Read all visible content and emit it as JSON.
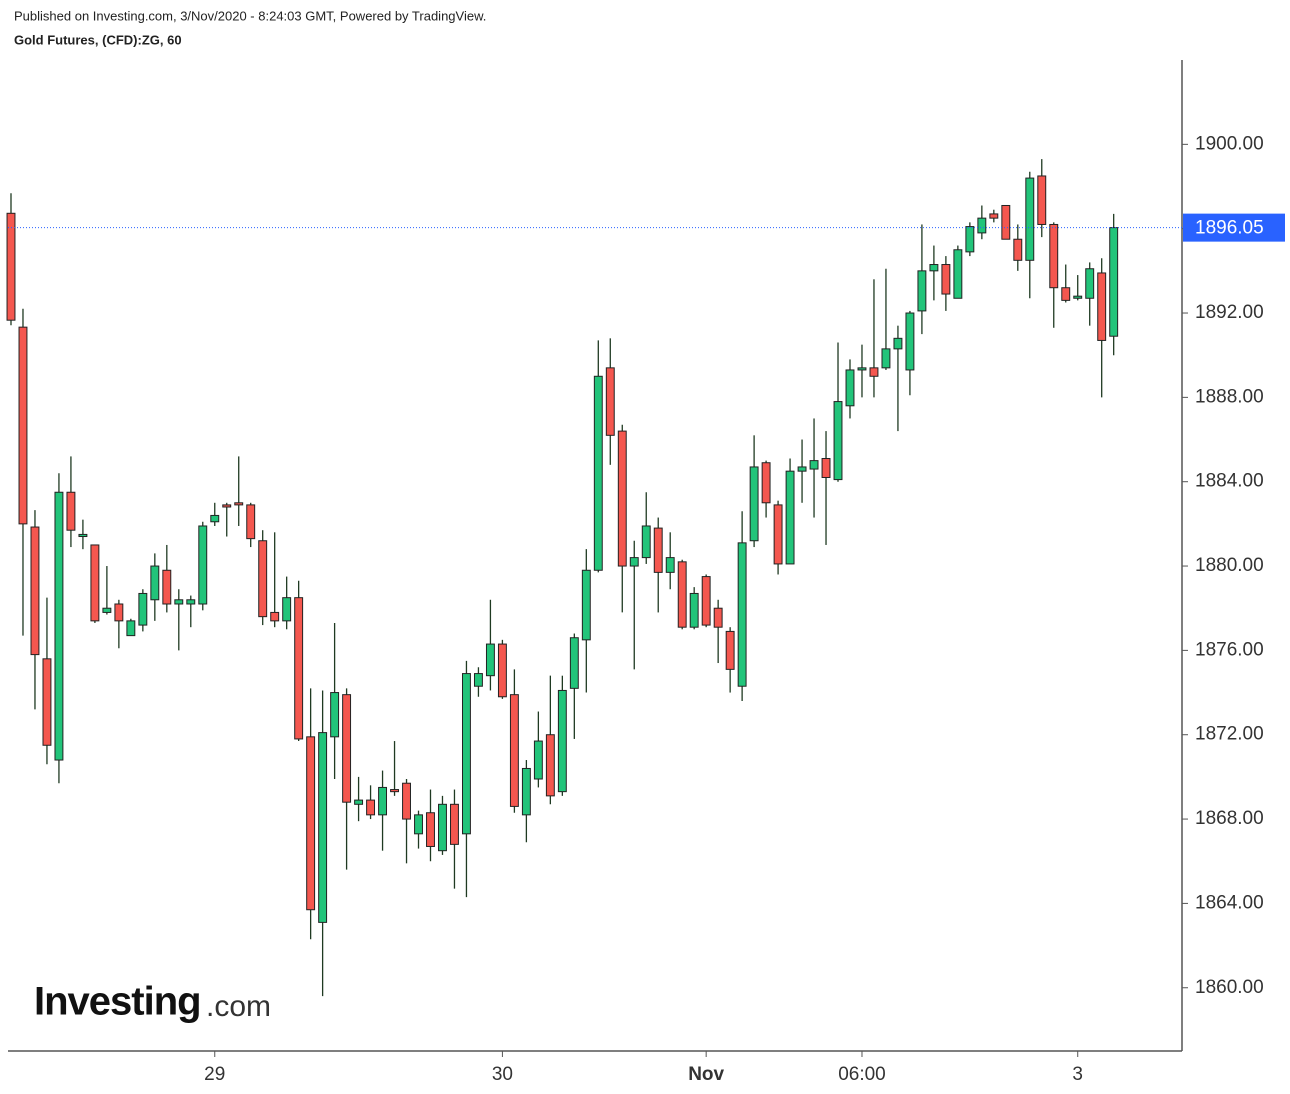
{
  "chart_data": {
    "type": "candlestick",
    "published": "Published on Investing.com, 3/Nov/2020 - 8:24:03 GMT, Powered by TradingView.",
    "title": "Gold Futures, (CFD):ZG, 60",
    "logo": {
      "name": "Investing",
      "suffix": ".com"
    },
    "up_color": "#22c47a",
    "down_color": "#f4574f",
    "last_price": 1896.05,
    "last_price_color": "#2962ff",
    "categories": [
      null,
      null,
      null,
      null,
      null,
      null,
      null,
      null,
      null,
      null,
      null,
      null,
      null,
      null,
      null,
      null,
      null,
      null,
      null,
      null,
      null,
      null,
      null,
      null,
      null,
      null,
      null,
      null,
      null,
      null,
      null,
      null,
      null,
      null,
      null,
      null,
      null,
      null,
      null,
      null,
      null,
      null,
      null,
      null,
      null,
      null,
      null,
      null,
      null,
      null,
      null,
      null,
      null,
      null,
      null,
      null,
      null,
      null,
      null,
      null,
      null,
      null,
      null,
      null,
      null,
      null,
      null,
      null,
      null,
      null,
      null,
      null,
      null,
      null,
      null,
      null,
      null,
      null,
      null,
      null,
      null,
      null,
      null,
      null,
      null,
      null,
      null,
      null,
      null,
      null,
      null,
      null,
      null
    ],
    "open": [
      1896.73,
      1891.33,
      1881.85,
      1875.6,
      1870.8,
      1883.5,
      1881.4,
      1881.0,
      1877.8,
      1878.2,
      1876.7,
      1877.2,
      1878.4,
      1879.8,
      1878.2,
      1878.2,
      1878.2,
      1882.1,
      1882.9,
      1883.0,
      1882.9,
      1881.2,
      1877.8,
      1877.4,
      1878.5,
      1871.9,
      1863.1,
      1871.9,
      1873.9,
      1868.7,
      1868.9,
      1868.2,
      1869.4,
      1869.7,
      1867.3,
      1868.3,
      1866.5,
      1868.7,
      1867.3,
      1874.3,
      1874.8,
      1876.3,
      1873.9,
      1868.2,
      1869.9,
      1872.0,
      1869.3,
      1874.2,
      1876.5,
      1879.8,
      1889.4,
      1886.4,
      1880.0,
      1880.4,
      1881.8,
      1879.7,
      1880.2,
      1877.1,
      1879.5,
      1878.0,
      1876.9,
      1874.3,
      1881.2,
      1884.9,
      1882.9,
      1880.1,
      1884.5,
      1884.6,
      1885.1,
      1884.1,
      1887.6,
      1889.3,
      1889.4,
      1889.4,
      1890.3,
      1889.3,
      1892.1,
      1894.0,
      1894.3,
      1892.7,
      1894.9,
      1895.8,
      1896.7,
      1897.1,
      1895.5,
      1894.5,
      1898.5,
      1896.2,
      1893.2,
      1892.7,
      1892.7,
      1893.9,
      1890.9
    ],
    "high": [
      1897.68,
      1892.2,
      1882.65,
      1878.5,
      1884.4,
      1885.2,
      1882.2,
      1881.0,
      1880.0,
      1878.4,
      1877.5,
      1878.9,
      1880.6,
      1881.0,
      1878.9,
      1878.6,
      1882.1,
      1883.0,
      1883.0,
      1885.2,
      1883.0,
      1881.7,
      1881.6,
      1879.5,
      1879.3,
      1874.2,
      1874.1,
      1877.3,
      1874.2,
      1870.0,
      1869.6,
      1870.3,
      1871.7,
      1869.9,
      1868.4,
      1869.4,
      1869.1,
      1869.4,
      1875.5,
      1875.2,
      1878.4,
      1876.5,
      1875.1,
      1870.8,
      1873.1,
      1874.8,
      1874.8,
      1876.8,
      1880.8,
      1890.7,
      1890.8,
      1886.7,
      1881.2,
      1883.5,
      1882.3,
      1881.6,
      1880.3,
      1879.0,
      1879.6,
      1878.4,
      1877.1,
      1882.6,
      1886.2,
      1885.0,
      1883.1,
      1885.1,
      1886.0,
      1887.0,
      1886.4,
      1890.6,
      1889.8,
      1890.5,
      1893.6,
      1894.1,
      1891.4,
      1892.1,
      1896.2,
      1895.2,
      1894.7,
      1895.2,
      1896.3,
      1897.1,
      1896.9,
      1897.1,
      1896.2,
      1898.7,
      1899.3,
      1896.3,
      1894.3,
      1893.8,
      1894.4,
      1894.6,
      1896.7
    ],
    "low": [
      1891.42,
      1876.7,
      1873.2,
      1870.6,
      1869.7,
      1880.9,
      1880.8,
      1877.3,
      1877.7,
      1876.1,
      1876.7,
      1876.9,
      1877.4,
      1877.8,
      1876.0,
      1877.1,
      1877.9,
      1881.9,
      1881.4,
      1881.9,
      1880.9,
      1877.2,
      1877.1,
      1877.0,
      1871.7,
      1862.3,
      1859.6,
      1869.9,
      1865.6,
      1867.9,
      1868.0,
      1866.5,
      1869.1,
      1865.9,
      1866.6,
      1866.0,
      1866.3,
      1864.7,
      1864.3,
      1873.8,
      1874.1,
      1873.7,
      1868.3,
      1866.9,
      1869.5,
      1868.7,
      1869.1,
      1871.8,
      1874.0,
      1879.7,
      1884.8,
      1877.8,
      1875.1,
      1880.1,
      1877.8,
      1878.9,
      1877.0,
      1877.0,
      1877.1,
      1875.4,
      1874.0,
      1873.6,
      1880.9,
      1882.3,
      1879.6,
      1880.1,
      1883.0,
      1882.3,
      1881.0,
      1884.0,
      1887.0,
      1888.0,
      1888.0,
      1889.3,
      1886.4,
      1888.1,
      1891.0,
      1892.6,
      1892.1,
      1892.7,
      1894.7,
      1895.5,
      1896.3,
      1895.5,
      1894.0,
      1892.7,
      1895.6,
      1891.3,
      1892.5,
      1892.6,
      1891.4,
      1888.0,
      1890.0
    ],
    "close": [
      1891.66,
      1882.0,
      1875.8,
      1871.5,
      1883.5,
      1881.7,
      1881.5,
      1877.4,
      1878.0,
      1877.4,
      1877.4,
      1878.7,
      1880.0,
      1878.2,
      1878.4,
      1878.4,
      1881.9,
      1882.4,
      1882.8,
      1882.9,
      1881.3,
      1877.6,
      1877.4,
      1878.5,
      1871.8,
      1863.7,
      1872.1,
      1874.0,
      1868.8,
      1868.9,
      1868.2,
      1869.5,
      1869.3,
      1868.0,
      1868.2,
      1866.7,
      1868.7,
      1866.8,
      1874.9,
      1874.9,
      1876.3,
      1873.8,
      1868.6,
      1870.4,
      1871.7,
      1869.1,
      1874.1,
      1876.6,
      1879.8,
      1889.0,
      1886.2,
      1880.0,
      1880.4,
      1881.9,
      1879.7,
      1880.4,
      1877.1,
      1878.7,
      1877.2,
      1877.1,
      1875.1,
      1881.1,
      1884.7,
      1883.0,
      1880.1,
      1884.5,
      1884.7,
      1885.0,
      1884.2,
      1887.8,
      1889.3,
      1889.4,
      1889.0,
      1890.3,
      1890.8,
      1892.0,
      1894.0,
      1894.3,
      1892.9,
      1895.0,
      1896.1,
      1896.5,
      1896.5,
      1895.5,
      1894.5,
      1898.4,
      1896.2,
      1893.2,
      1892.6,
      1892.8,
      1894.1,
      1890.7,
      1896.05
    ],
    "xlim": [
      -0.25,
      97.7
    ],
    "xticks": [
      {
        "value": 17,
        "label": "29"
      },
      {
        "value": 41,
        "label": "30"
      },
      {
        "value": 58,
        "label": "Nov"
      },
      {
        "value": 71,
        "label": "06:00"
      },
      {
        "value": 89,
        "label": "3"
      }
    ],
    "ylim": [
      1857,
      1904
    ],
    "yticks": [
      {
        "value": 1860,
        "label": "1860.00"
      },
      {
        "value": 1864,
        "label": "1864.00"
      },
      {
        "value": 1868,
        "label": "1868.00"
      },
      {
        "value": 1872,
        "label": "1872.00"
      },
      {
        "value": 1876,
        "label": "1876.00"
      },
      {
        "value": 1880,
        "label": "1880.00"
      },
      {
        "value": 1884,
        "label": "1884.00"
      },
      {
        "value": 1888,
        "label": "1888.00"
      },
      {
        "value": 1892,
        "label": "1892.00"
      },
      {
        "value": 1896,
        "label": "1896.00"
      },
      {
        "value": 1900,
        "label": "1900.00"
      }
    ],
    "y_axis_side": "right"
  }
}
